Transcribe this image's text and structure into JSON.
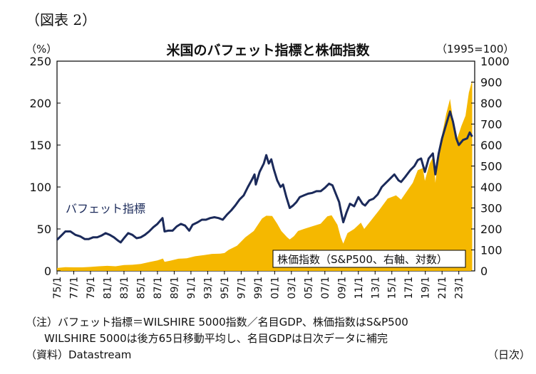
{
  "figure_label": "（図表 2）",
  "chart_data": {
    "type": "line",
    "title": "米国のバフェット指標と株価指数",
    "y_left_unit": "（%）",
    "y_right_unit": "（1995=100）",
    "x_unit_note": "（日次）",
    "y_left_ticks": [
      "0",
      "50",
      "100",
      "150",
      "200",
      "250"
    ],
    "y_left_range": [
      0,
      250
    ],
    "y_right_ticks": [
      "0",
      "100",
      "200",
      "300",
      "400",
      "500",
      "600",
      "700",
      "800",
      "900",
      "1000"
    ],
    "y_right_range": [
      0,
      1000
    ],
    "x_range": [
      1975,
      2024.9
    ],
    "x_ticks": [
      "75/1",
      "77/1",
      "79/1",
      "81/1",
      "83/1",
      "85/1",
      "87/1",
      "89/1",
      "91/1",
      "93/1",
      "95/1",
      "97/1",
      "99/1",
      "01/1",
      "03/1",
      "05/1",
      "07/1",
      "09/1",
      "11/1",
      "13/1",
      "15/1",
      "17/1",
      "19/1",
      "21/1",
      "23/1"
    ],
    "grid": false,
    "series": [
      {
        "name": "バフェット指標",
        "axis": "left",
        "color": "#1b2a5a",
        "points": [
          [
            1975.0,
            37
          ],
          [
            1975.5,
            42
          ],
          [
            1976.0,
            47
          ],
          [
            1976.6,
            47
          ],
          [
            1977.2,
            43
          ],
          [
            1977.8,
            41
          ],
          [
            1978.3,
            38
          ],
          [
            1978.8,
            38
          ],
          [
            1979.3,
            40
          ],
          [
            1979.8,
            40
          ],
          [
            1980.3,
            42
          ],
          [
            1980.8,
            45
          ],
          [
            1981.3,
            43
          ],
          [
            1981.8,
            40
          ],
          [
            1982.3,
            36
          ],
          [
            1982.6,
            34
          ],
          [
            1983.0,
            39
          ],
          [
            1983.5,
            45
          ],
          [
            1984.0,
            43
          ],
          [
            1984.5,
            39
          ],
          [
            1985.0,
            40
          ],
          [
            1985.5,
            43
          ],
          [
            1986.0,
            47
          ],
          [
            1986.5,
            52
          ],
          [
            1987.0,
            56
          ],
          [
            1987.6,
            63
          ],
          [
            1987.85,
            47
          ],
          [
            1988.3,
            48
          ],
          [
            1988.8,
            48
          ],
          [
            1989.3,
            53
          ],
          [
            1989.8,
            56
          ],
          [
            1990.3,
            54
          ],
          [
            1990.8,
            48
          ],
          [
            1991.2,
            55
          ],
          [
            1991.8,
            58
          ],
          [
            1992.3,
            61
          ],
          [
            1992.8,
            61
          ],
          [
            1993.3,
            63
          ],
          [
            1993.8,
            64
          ],
          [
            1994.3,
            63
          ],
          [
            1994.8,
            61
          ],
          [
            1995.3,
            67
          ],
          [
            1995.8,
            72
          ],
          [
            1996.3,
            78
          ],
          [
            1996.8,
            85
          ],
          [
            1997.3,
            90
          ],
          [
            1997.8,
            100
          ],
          [
            1998.3,
            109
          ],
          [
            1998.6,
            115
          ],
          [
            1998.75,
            103
          ],
          [
            1999.2,
            118
          ],
          [
            1999.7,
            128
          ],
          [
            2000.0,
            138
          ],
          [
            2000.3,
            128
          ],
          [
            2000.6,
            133
          ],
          [
            2000.9,
            121
          ],
          [
            2001.3,
            108
          ],
          [
            2001.7,
            100
          ],
          [
            2002.0,
            103
          ],
          [
            2002.4,
            88
          ],
          [
            2002.8,
            75
          ],
          [
            2003.2,
            78
          ],
          [
            2003.6,
            82
          ],
          [
            2004.0,
            88
          ],
          [
            2004.5,
            90
          ],
          [
            2005.0,
            92
          ],
          [
            2005.5,
            93
          ],
          [
            2006.0,
            95
          ],
          [
            2006.5,
            95
          ],
          [
            2007.0,
            99
          ],
          [
            2007.5,
            104
          ],
          [
            2007.9,
            102
          ],
          [
            2008.3,
            92
          ],
          [
            2008.7,
            82
          ],
          [
            2009.0,
            67
          ],
          [
            2009.2,
            58
          ],
          [
            2009.6,
            70
          ],
          [
            2010.0,
            80
          ],
          [
            2010.5,
            77
          ],
          [
            2011.0,
            88
          ],
          [
            2011.5,
            80
          ],
          [
            2011.8,
            78
          ],
          [
            2012.3,
            84
          ],
          [
            2012.8,
            86
          ],
          [
            2013.3,
            91
          ],
          [
            2013.8,
            100
          ],
          [
            2014.3,
            105
          ],
          [
            2014.8,
            110
          ],
          [
            2015.3,
            115
          ],
          [
            2015.8,
            108
          ],
          [
            2016.1,
            106
          ],
          [
            2016.6,
            112
          ],
          [
            2017.2,
            120
          ],
          [
            2017.7,
            125
          ],
          [
            2018.1,
            132
          ],
          [
            2018.5,
            134
          ],
          [
            2018.95,
            118
          ],
          [
            2019.4,
            134
          ],
          [
            2019.9,
            140
          ],
          [
            2020.2,
            115
          ],
          [
            2020.6,
            140
          ],
          [
            2021.0,
            158
          ],
          [
            2021.5,
            175
          ],
          [
            2021.95,
            190
          ],
          [
            2022.3,
            178
          ],
          [
            2022.7,
            158
          ],
          [
            2023.0,
            150
          ],
          [
            2023.5,
            156
          ],
          [
            2024.0,
            158
          ],
          [
            2024.3,
            165
          ],
          [
            2024.6,
            160
          ]
        ]
      },
      {
        "name": "株価指数（S&P500、右軸、対数）",
        "axis": "right",
        "color": "#f5b800",
        "points": [
          [
            1975.0,
            14
          ],
          [
            1976.0,
            18
          ],
          [
            1977.0,
            17
          ],
          [
            1978.0,
            17
          ],
          [
            1979.0,
            19
          ],
          [
            1980.0,
            22
          ],
          [
            1981.0,
            24
          ],
          [
            1982.0,
            22
          ],
          [
            1983.0,
            28
          ],
          [
            1984.0,
            29
          ],
          [
            1985.0,
            33
          ],
          [
            1986.0,
            42
          ],
          [
            1987.0,
            50
          ],
          [
            1987.65,
            59
          ],
          [
            1987.85,
            43
          ],
          [
            1988.5,
            48
          ],
          [
            1989.5,
            58
          ],
          [
            1990.5,
            60
          ],
          [
            1991.5,
            70
          ],
          [
            1992.5,
            75
          ],
          [
            1993.5,
            81
          ],
          [
            1994.5,
            82
          ],
          [
            1995.0,
            85
          ],
          [
            1995.5,
            100
          ],
          [
            1996.5,
            120
          ],
          [
            1997.5,
            160
          ],
          [
            1998.5,
            190
          ],
          [
            1999.0,
            220
          ],
          [
            1999.5,
            250
          ],
          [
            2000.0,
            263
          ],
          [
            2000.7,
            262
          ],
          [
            2001.3,
            225
          ],
          [
            2001.8,
            190
          ],
          [
            2002.5,
            160
          ],
          [
            2002.8,
            150
          ],
          [
            2003.3,
            165
          ],
          [
            2003.8,
            190
          ],
          [
            2004.5,
            200
          ],
          [
            2005.5,
            213
          ],
          [
            2006.5,
            225
          ],
          [
            2007.3,
            260
          ],
          [
            2007.8,
            265
          ],
          [
            2008.5,
            220
          ],
          [
            2008.9,
            160
          ],
          [
            2009.2,
            130
          ],
          [
            2009.7,
            180
          ],
          [
            2010.5,
            200
          ],
          [
            2011.3,
            230
          ],
          [
            2011.7,
            200
          ],
          [
            2012.5,
            240
          ],
          [
            2013.5,
            290
          ],
          [
            2014.5,
            345
          ],
          [
            2015.5,
            360
          ],
          [
            2016.1,
            340
          ],
          [
            2016.8,
            380
          ],
          [
            2017.5,
            420
          ],
          [
            2018.1,
            480
          ],
          [
            2018.7,
            490
          ],
          [
            2018.95,
            430
          ],
          [
            2019.5,
            510
          ],
          [
            2020.0,
            550
          ],
          [
            2020.2,
            420
          ],
          [
            2020.7,
            600
          ],
          [
            2021.0,
            650
          ],
          [
            2021.5,
            750
          ],
          [
            2021.95,
            820
          ],
          [
            2022.3,
            720
          ],
          [
            2022.8,
            630
          ],
          [
            2023.3,
            690
          ],
          [
            2023.8,
            740
          ],
          [
            2024.2,
            850
          ],
          [
            2024.6,
            910
          ]
        ]
      }
    ]
  },
  "notes": {
    "line1": "（注）バフェット指標＝WILSHIRE 5000指数／名目GDP、株価指数はS&P500",
    "line2": "WILSHIRE 5000は後方65日移動平均し、名目GDPは日次データに補完",
    "source": "（資料）Datastream"
  }
}
